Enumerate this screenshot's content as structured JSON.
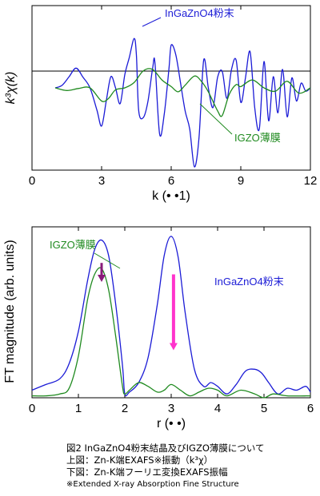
{
  "chart_data": [
    {
      "type": "line",
      "panel": "top",
      "xlabel": "k (• •1)",
      "ylabel": "k³χ(k)",
      "xlim": [
        0,
        12
      ],
      "xticks": [
        "0",
        "3",
        "6",
        "9",
        "12"
      ],
      "y_ticklabels": false,
      "zero_line": true,
      "series": [
        {
          "name": "InGaZnO4粉末",
          "color": "#1b1bd6",
          "x": [
            1.0,
            1.3,
            1.6,
            1.9,
            2.2,
            2.5,
            2.8,
            3.0,
            3.2,
            3.4,
            3.6,
            3.8,
            4.0,
            4.2,
            4.4,
            4.5,
            4.6,
            4.8,
            5.0,
            5.2,
            5.3,
            5.5,
            5.7,
            5.9,
            6.0,
            6.2,
            6.4,
            6.6,
            6.8,
            7.0,
            7.2,
            7.4,
            7.6,
            7.8,
            8.0,
            8.2,
            8.4,
            8.6,
            8.8,
            9.0,
            9.2,
            9.4,
            9.6,
            9.8,
            10.0,
            10.2,
            10.4,
            10.6,
            10.8,
            11.0,
            11.2,
            11.4,
            11.6,
            11.8,
            12.0
          ],
          "y": [
            0.0,
            0.04,
            0.17,
            0.3,
            0.16,
            0.0,
            -0.34,
            -0.58,
            -0.2,
            0.17,
            0.0,
            -0.24,
            0.2,
            0.47,
            0.75,
            0.5,
            -0.35,
            -0.45,
            -0.2,
            0.3,
            0.38,
            -0.7,
            -0.4,
            0.28,
            0.65,
            0.5,
            0.08,
            -0.35,
            -0.63,
            -1.2,
            -0.75,
            0.42,
            0.0,
            -0.3,
            0.16,
            0.25,
            -0.16,
            0.28,
            0.42,
            -0.22,
            0.15,
            0.55,
            -0.3,
            -0.62,
            0.4,
            -0.5,
            0.17,
            -0.38,
            0.28,
            -0.44,
            0.15,
            -0.2,
            0.07,
            -0.05,
            0.0
          ]
        },
        {
          "name": "IGZO薄膜",
          "color": "#1f8a1f",
          "x": [
            1.0,
            1.5,
            2.0,
            2.5,
            3.0,
            3.3,
            3.6,
            4.0,
            4.4,
            4.8,
            5.2,
            5.6,
            6.0,
            6.3,
            6.6,
            7.0,
            7.3,
            7.6,
            8.0,
            8.2,
            8.5,
            8.8,
            9.0,
            9.5,
            10.0,
            10.5,
            11.0,
            11.5,
            12.0
          ],
          "y": [
            0.0,
            -0.04,
            -0.01,
            0.0,
            -0.2,
            -0.16,
            -0.03,
            0.0,
            0.08,
            0.26,
            0.28,
            0.12,
            0.02,
            -0.06,
            0.04,
            0.18,
            0.1,
            -0.06,
            -0.35,
            -0.42,
            -0.1,
            0.05,
            0.02,
            0.12,
            0.0,
            -0.05,
            0.1,
            -0.08,
            0.0
          ]
        }
      ]
    },
    {
      "type": "line",
      "panel": "bottom",
      "xlabel": "r (• •)",
      "ylabel": "FT magnitude (arb. units)",
      "xlim": [
        0,
        6
      ],
      "xticks": [
        "0",
        "1",
        "2",
        "3",
        "4",
        "5",
        "6"
      ],
      "y_ticklabels": false,
      "series": [
        {
          "name": "InGaZnO4粉末",
          "color": "#1b1bd6",
          "x": [
            0.0,
            0.3,
            0.6,
            0.8,
            1.0,
            1.2,
            1.35,
            1.5,
            1.65,
            1.8,
            1.95,
            2.0,
            2.1,
            2.3,
            2.5,
            2.7,
            2.85,
            3.0,
            3.15,
            3.3,
            3.5,
            3.7,
            3.85,
            4.0,
            4.2,
            4.4,
            4.6,
            4.8,
            4.95,
            5.1,
            5.3,
            5.5,
            5.7,
            5.9,
            6.0
          ],
          "y": [
            0.04,
            0.07,
            0.1,
            0.18,
            0.35,
            0.62,
            0.78,
            0.83,
            0.75,
            0.5,
            0.17,
            0.02,
            0.03,
            0.08,
            0.21,
            0.49,
            0.75,
            0.85,
            0.74,
            0.45,
            0.15,
            0.06,
            0.08,
            0.06,
            0.02,
            0.07,
            0.14,
            0.15,
            0.13,
            0.08,
            0.02,
            0.05,
            0.04,
            0.06,
            0.03
          ]
        },
        {
          "name": "IGZO薄膜",
          "color": "#1f8a1f",
          "x": [
            0.0,
            0.3,
            0.6,
            0.8,
            1.0,
            1.2,
            1.35,
            1.5,
            1.65,
            1.8,
            1.95,
            2.0,
            2.1,
            2.3,
            2.5,
            2.7,
            2.85,
            3.0,
            3.2,
            3.4,
            3.6,
            3.8,
            4.0,
            4.2,
            4.5,
            4.8,
            5.0,
            5.2,
            5.5,
            6.0
          ],
          "y": [
            0.01,
            0.01,
            0.02,
            0.05,
            0.22,
            0.52,
            0.65,
            0.68,
            0.57,
            0.33,
            0.06,
            0.02,
            0.04,
            0.08,
            0.06,
            0.03,
            0.04,
            0.07,
            0.04,
            0.01,
            0.03,
            0.05,
            0.04,
            0.01,
            0.04,
            0.02,
            0.0,
            0.02,
            0.01,
            0.01
          ]
        }
      ],
      "annotations": [
        {
          "kind": "arrow",
          "color": "#8a1a7a",
          "x": 1.5,
          "y_from": 0.71,
          "y_to": 0.61
        },
        {
          "kind": "arrow",
          "color": "#ff33cc",
          "x": 3.05,
          "y_from": 0.65,
          "y_to": 0.25
        }
      ]
    }
  ],
  "labels": {
    "top_powder": "InGaZnO4粉末",
    "top_film": "IGZO薄膜",
    "bottom_powder": "InGaZnO4粉末",
    "bottom_film": "IGZO薄膜"
  },
  "caption": {
    "line1": "図2 InGaZnO4粉末結晶及びIGZO薄膜について",
    "line2": "上図：Zn-K端EXAFS※振動（k³χ）",
    "line3": "下図：Zn-K端フーリエ変換EXAFS振幅",
    "line4": "※Extended X-ray Absorption Fine Structure"
  }
}
